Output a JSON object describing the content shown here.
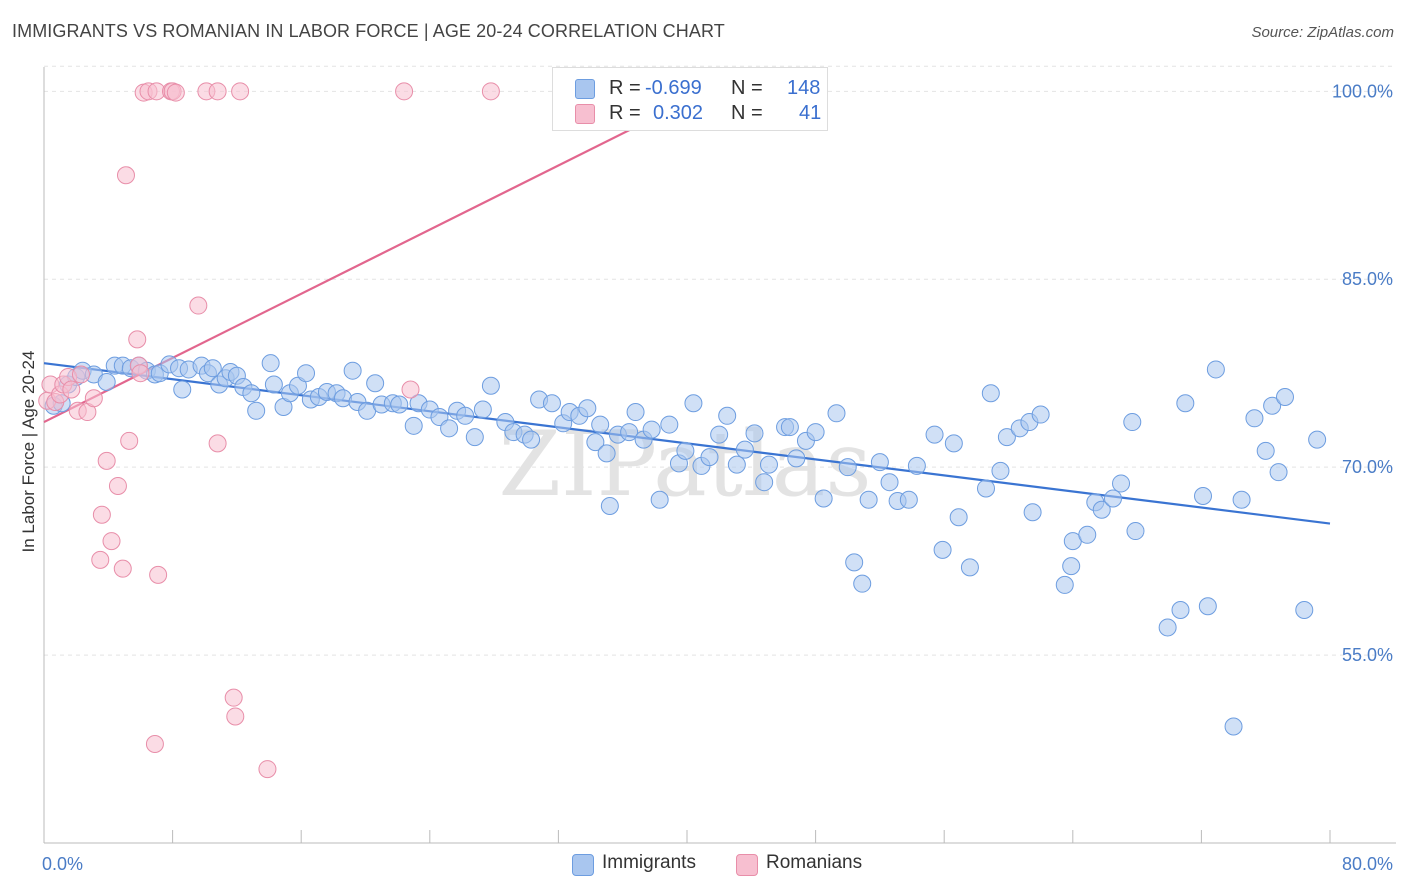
{
  "title": "IMMIGRANTS VS ROMANIAN IN LABOR FORCE | AGE 20-24 CORRELATION CHART",
  "source": "Source: ZipAtlas.com",
  "watermark": "ZIPatlas",
  "legend": {
    "rows": [
      {
        "r_label": "R =",
        "r_value": "-0.699",
        "n_label": "N =",
        "n_value": "148",
        "color": "#a9c6ef"
      },
      {
        "r_label": "R =",
        "r_value": "0.302",
        "n_label": "N =",
        "n_value": "41",
        "color": "#f7bfd0"
      }
    ]
  },
  "bottom_legend": [
    {
      "label": "Immigrants",
      "color": "#a9c6ef"
    },
    {
      "label": "Romanians",
      "color": "#f7bfd0"
    }
  ],
  "chart_data": {
    "type": "scatter",
    "ylabel": "In Labor Force | Age 20-24",
    "xlim": [
      0,
      80
    ],
    "ylim": [
      40,
      102.5
    ],
    "x_tick_labels": [
      "0.0%",
      "80.0%"
    ],
    "y_ticks": [
      55,
      70,
      85,
      100
    ],
    "y_tick_labels": [
      "55.0%",
      "70.0%",
      "85.0%",
      "100.0%"
    ],
    "grid": true,
    "series": [
      {
        "name": "Immigrants",
        "color": "#a9c6ef",
        "stroke": "#6d9de0",
        "trend": {
          "x": [
            0,
            80
          ],
          "y": [
            78.3,
            65.5
          ],
          "color": "#3a74d2"
        },
        "points": [
          [
            0.6,
            74.9
          ],
          [
            1.1,
            75.1
          ],
          [
            1.5,
            76.6
          ],
          [
            2.0,
            77.2
          ],
          [
            2.4,
            77.7
          ],
          [
            3.1,
            77.4
          ],
          [
            3.9,
            76.8
          ],
          [
            4.4,
            78.1
          ],
          [
            4.9,
            78.1
          ],
          [
            5.4,
            77.9
          ],
          [
            5.9,
            78.1
          ],
          [
            6.4,
            77.7
          ],
          [
            6.9,
            77.4
          ],
          [
            7.2,
            77.5
          ],
          [
            7.8,
            78.2
          ],
          [
            8.4,
            77.9
          ],
          [
            8.6,
            76.2
          ],
          [
            9.0,
            77.8
          ],
          [
            9.8,
            78.1
          ],
          [
            10.2,
            77.5
          ],
          [
            10.5,
            77.9
          ],
          [
            10.9,
            76.6
          ],
          [
            11.3,
            77.1
          ],
          [
            11.6,
            77.6
          ],
          [
            12.0,
            77.3
          ],
          [
            12.4,
            76.4
          ],
          [
            12.9,
            75.9
          ],
          [
            13.2,
            74.5
          ],
          [
            14.1,
            78.3
          ],
          [
            14.3,
            76.6
          ],
          [
            14.9,
            74.8
          ],
          [
            15.3,
            75.9
          ],
          [
            15.8,
            76.5
          ],
          [
            16.3,
            77.5
          ],
          [
            16.6,
            75.4
          ],
          [
            17.1,
            75.6
          ],
          [
            17.6,
            76.0
          ],
          [
            18.2,
            75.9
          ],
          [
            18.6,
            75.5
          ],
          [
            19.2,
            77.7
          ],
          [
            19.5,
            75.2
          ],
          [
            20.1,
            74.5
          ],
          [
            20.6,
            76.7
          ],
          [
            21.0,
            75.0
          ],
          [
            21.7,
            75.1
          ],
          [
            22.1,
            75.0
          ],
          [
            23.0,
            73.3
          ],
          [
            23.3,
            75.1
          ],
          [
            24.0,
            74.6
          ],
          [
            24.6,
            74.0
          ],
          [
            25.2,
            73.1
          ],
          [
            25.7,
            74.5
          ],
          [
            26.2,
            74.1
          ],
          [
            26.8,
            72.4
          ],
          [
            27.3,
            74.6
          ],
          [
            27.8,
            76.5
          ],
          [
            28.7,
            73.6
          ],
          [
            29.2,
            72.8
          ],
          [
            29.9,
            72.6
          ],
          [
            30.3,
            72.2
          ],
          [
            30.8,
            75.4
          ],
          [
            31.6,
            75.1
          ],
          [
            32.3,
            73.5
          ],
          [
            32.7,
            74.4
          ],
          [
            33.3,
            74.1
          ],
          [
            33.8,
            74.7
          ],
          [
            34.3,
            72.0
          ],
          [
            34.6,
            73.4
          ],
          [
            35.0,
            71.1
          ],
          [
            35.2,
            66.9
          ],
          [
            35.7,
            72.6
          ],
          [
            36.4,
            72.8
          ],
          [
            36.8,
            74.4
          ],
          [
            37.3,
            72.2
          ],
          [
            37.8,
            73.0
          ],
          [
            38.3,
            67.4
          ],
          [
            38.9,
            73.4
          ],
          [
            39.5,
            70.3
          ],
          [
            39.9,
            71.3
          ],
          [
            40.4,
            75.1
          ],
          [
            40.9,
            70.1
          ],
          [
            41.4,
            70.8
          ],
          [
            42.0,
            72.6
          ],
          [
            42.5,
            74.1
          ],
          [
            43.1,
            70.2
          ],
          [
            43.6,
            71.4
          ],
          [
            44.2,
            72.7
          ],
          [
            44.8,
            68.8
          ],
          [
            45.1,
            70.2
          ],
          [
            46.1,
            73.2
          ],
          [
            46.4,
            73.2
          ],
          [
            46.8,
            70.7
          ],
          [
            47.4,
            72.1
          ],
          [
            48.0,
            72.8
          ],
          [
            48.5,
            67.5
          ],
          [
            49.3,
            74.3
          ],
          [
            50.0,
            70.0
          ],
          [
            50.4,
            62.4
          ],
          [
            50.9,
            60.7
          ],
          [
            51.3,
            67.4
          ],
          [
            52.0,
            70.4
          ],
          [
            52.6,
            68.8
          ],
          [
            53.1,
            67.3
          ],
          [
            53.8,
            67.4
          ],
          [
            54.3,
            70.1
          ],
          [
            55.4,
            72.6
          ],
          [
            55.9,
            63.4
          ],
          [
            56.6,
            71.9
          ],
          [
            56.9,
            66.0
          ],
          [
            57.6,
            62.0
          ],
          [
            58.6,
            68.3
          ],
          [
            58.9,
            75.9
          ],
          [
            59.5,
            69.7
          ],
          [
            59.9,
            72.4
          ],
          [
            60.7,
            73.1
          ],
          [
            61.5,
            66.4
          ],
          [
            61.3,
            73.6
          ],
          [
            62.0,
            74.2
          ],
          [
            63.5,
            60.6
          ],
          [
            63.9,
            62.1
          ],
          [
            64.0,
            64.1
          ],
          [
            64.9,
            64.6
          ],
          [
            65.4,
            67.2
          ],
          [
            65.8,
            66.6
          ],
          [
            66.5,
            67.5
          ],
          [
            67.0,
            68.7
          ],
          [
            67.7,
            73.6
          ],
          [
            67.9,
            64.9
          ],
          [
            69.9,
            57.2
          ],
          [
            70.7,
            58.6
          ],
          [
            71.0,
            75.1
          ],
          [
            72.1,
            67.7
          ],
          [
            72.4,
            58.9
          ],
          [
            72.9,
            77.8
          ],
          [
            74.0,
            49.3
          ],
          [
            74.5,
            67.4
          ],
          [
            75.3,
            73.9
          ],
          [
            76.0,
            71.3
          ],
          [
            76.4,
            74.9
          ],
          [
            76.8,
            69.6
          ],
          [
            77.2,
            75.6
          ],
          [
            78.4,
            58.6
          ],
          [
            79.2,
            72.2
          ]
        ]
      },
      {
        "name": "Romanians",
        "color": "#f7bfd0",
        "stroke": "#e88ea9",
        "trend": {
          "x": [
            0,
            40
          ],
          "y": [
            73.6,
            99.2
          ],
          "color": "#e2668e"
        },
        "points": [
          [
            0.2,
            75.3
          ],
          [
            0.4,
            76.6
          ],
          [
            0.7,
            75.2
          ],
          [
            1.0,
            75.8
          ],
          [
            1.2,
            76.6
          ],
          [
            1.5,
            77.2
          ],
          [
            1.7,
            76.2
          ],
          [
            2.1,
            74.5
          ],
          [
            2.3,
            77.4
          ],
          [
            2.7,
            74.4
          ],
          [
            3.1,
            75.5
          ],
          [
            3.5,
            62.6
          ],
          [
            3.6,
            66.2
          ],
          [
            3.9,
            70.5
          ],
          [
            4.2,
            64.1
          ],
          [
            4.6,
            68.5
          ],
          [
            4.9,
            61.9
          ],
          [
            5.1,
            93.3
          ],
          [
            5.3,
            72.1
          ],
          [
            5.8,
            80.2
          ],
          [
            5.9,
            78.1
          ],
          [
            6.0,
            77.5
          ],
          [
            6.2,
            99.9
          ],
          [
            6.5,
            100.0
          ],
          [
            6.9,
            47.9
          ],
          [
            7.0,
            100.0
          ],
          [
            7.1,
            61.4
          ],
          [
            7.9,
            100.0
          ],
          [
            8.0,
            100.0
          ],
          [
            8.2,
            99.9
          ],
          [
            9.6,
            82.9
          ],
          [
            10.1,
            100.0
          ],
          [
            10.8,
            100.0
          ],
          [
            10.8,
            71.9
          ],
          [
            11.8,
            51.6
          ],
          [
            11.9,
            50.1
          ],
          [
            12.2,
            100.0
          ],
          [
            13.9,
            45.9
          ],
          [
            22.8,
            76.2
          ],
          [
            22.4,
            100.0
          ],
          [
            27.8,
            100.0
          ]
        ]
      }
    ]
  }
}
